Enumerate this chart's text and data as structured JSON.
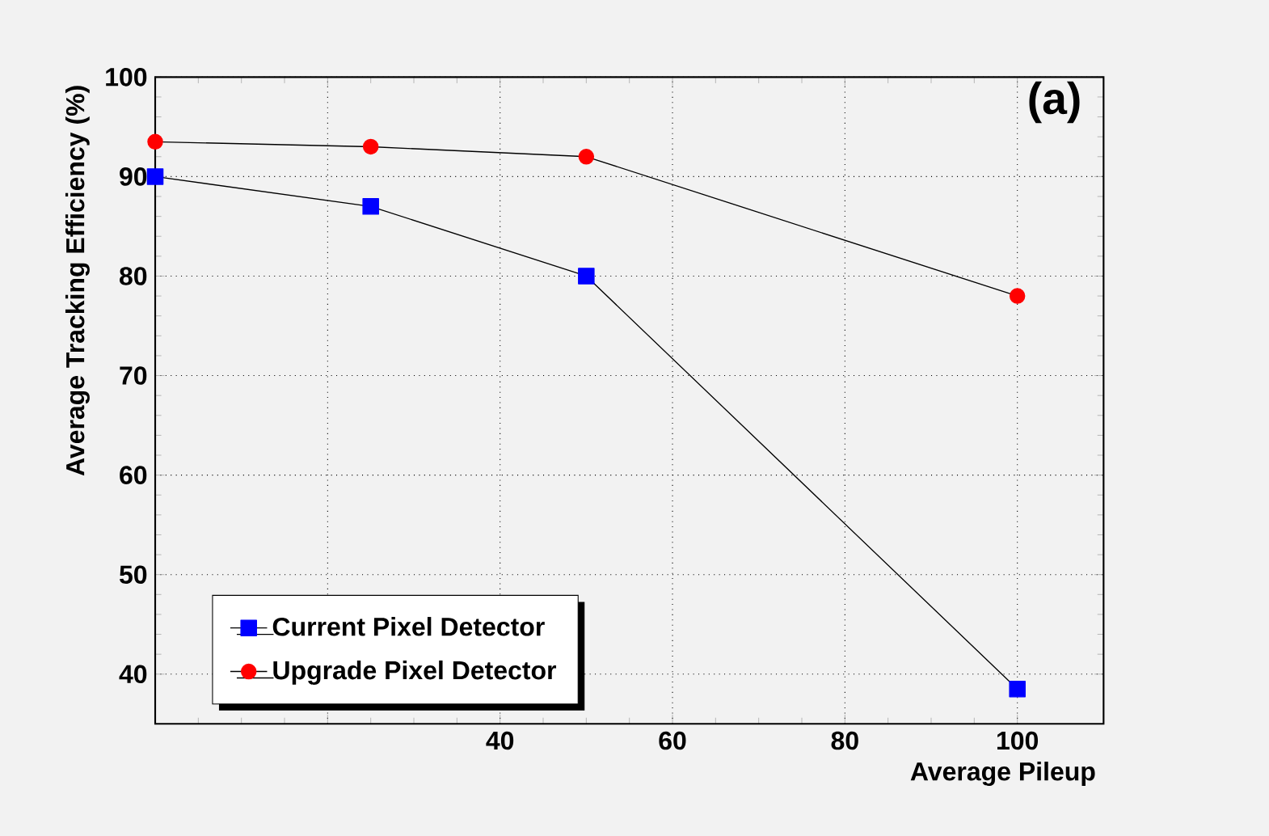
{
  "chart_data": {
    "type": "line",
    "title": "(a)",
    "xlabel": "Average Pileup",
    "ylabel": "Average Tracking Efficiency (%)",
    "x": [
      0,
      25,
      50,
      100
    ],
    "series": [
      {
        "name": "Current Pixel Detector",
        "color": "#0000ff",
        "marker": "square",
        "values": [
          90,
          87,
          80,
          38.5
        ]
      },
      {
        "name": "Upgrade Pixel Detector",
        "color": "#ff0000",
        "marker": "circle",
        "values": [
          93.5,
          93,
          92,
          78
        ]
      }
    ],
    "xlim": [
      0,
      110
    ],
    "ylim": [
      35,
      100
    ],
    "xticks": [
      {
        "value": 0,
        "label": null
      },
      {
        "value": 20,
        "label": null
      },
      40,
      60,
      80,
      100
    ],
    "yticks": [
      40,
      50,
      60,
      70,
      80,
      90,
      100
    ],
    "grid": true,
    "legend": "bottom left",
    "line_style": "solid"
  }
}
